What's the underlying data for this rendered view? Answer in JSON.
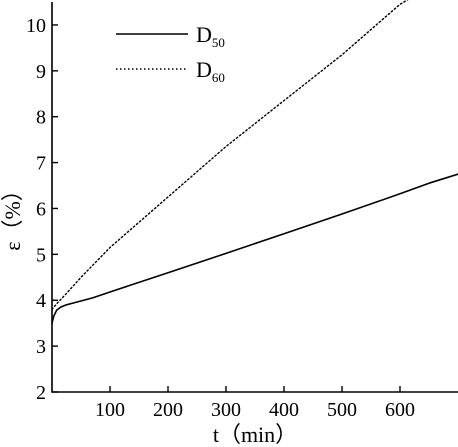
{
  "chart_data": {
    "type": "line",
    "xlabel": "t（min）",
    "ylabel": "ε（%）",
    "xlim": [
      0,
      700
    ],
    "ylim": [
      2,
      10.5
    ],
    "x_ticks": [
      100,
      200,
      300,
      400,
      500,
      600
    ],
    "y_ticks": [
      2,
      3,
      4,
      5,
      6,
      7,
      8,
      9,
      10
    ],
    "grid": false,
    "legend_position": "top-left",
    "series": [
      {
        "name": "D50",
        "name_main": "D",
        "name_sub": "50",
        "style": "solid",
        "color": "#000000",
        "x": [
          0,
          3,
          8,
          15,
          25,
          40,
          70,
          100,
          200,
          300,
          400,
          500,
          600,
          650,
          700
        ],
        "y": [
          3.5,
          3.65,
          3.78,
          3.85,
          3.9,
          3.95,
          4.05,
          4.18,
          4.6,
          5.02,
          5.45,
          5.88,
          6.32,
          6.55,
          6.75
        ]
      },
      {
        "name": "D60",
        "name_main": "D",
        "name_sub": "60",
        "style": "dotted",
        "color": "#000000",
        "x": [
          0,
          10,
          25,
          50,
          100,
          200,
          300,
          400,
          500,
          550,
          600,
          620
        ],
        "y": [
          3.8,
          3.95,
          4.15,
          4.5,
          5.15,
          6.25,
          7.35,
          8.35,
          9.35,
          9.9,
          10.45,
          10.6
        ]
      }
    ]
  }
}
